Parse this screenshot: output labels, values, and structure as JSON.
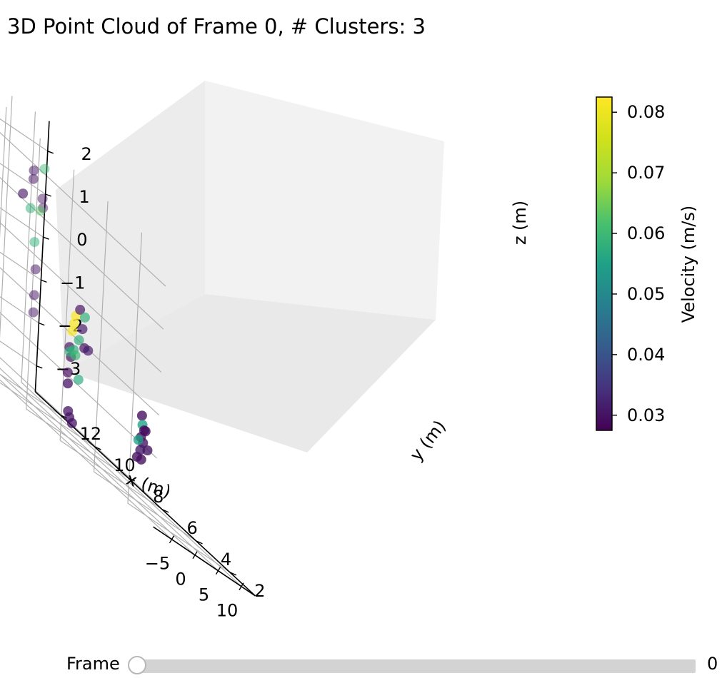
{
  "chart_data": {
    "type": "scatter",
    "projection": "3d",
    "title": "3D Point Cloud of Frame 0, # Clusters: 3",
    "xlabel": "x (m)",
    "ylabel": "y (m)",
    "zlabel": "z (m)",
    "xticks": [
      "−5",
      "0",
      "5",
      "10"
    ],
    "yticks": [
      "2",
      "4",
      "6",
      "8",
      "10",
      "12"
    ],
    "zticks": [
      "2",
      "1",
      "0",
      "−1",
      "−2",
      "−3"
    ],
    "xlim": [
      -9,
      13
    ],
    "ylim": [
      0.5,
      13.5
    ],
    "zlim": [
      -3.6,
      2.7
    ],
    "grid": true,
    "colormap": "viridis",
    "colorbar": {
      "label": "Velocity (m/s)",
      "range": [
        0.0275,
        0.0825
      ],
      "ticks": [
        "0.08",
        "0.07",
        "0.06",
        "0.05",
        "0.04",
        "0.03"
      ]
    },
    "points": [
      {
        "x": -8.3,
        "y": 9.0,
        "z": 1.1,
        "v": 0.03
      },
      {
        "x": -8.0,
        "y": 6.0,
        "z": -2.2,
        "v": 0.03
      },
      {
        "x": -8.4,
        "y": 5.8,
        "z": -2.8,
        "v": 0.03
      },
      {
        "x": -7.8,
        "y": 5.7,
        "z": -3.0,
        "v": 0.03
      },
      {
        "x": -8.8,
        "y": 5.6,
        "z": -2.9,
        "v": 0.03
      },
      {
        "x": -1.5,
        "y": 7.5,
        "z": -0.7,
        "v": 0.083
      },
      {
        "x": -1.8,
        "y": 7.5,
        "z": -0.9,
        "v": 0.083
      },
      {
        "x": -2.1,
        "y": 7.5,
        "z": -1.1,
        "v": 0.082
      },
      {
        "x": -2.5,
        "y": 7.5,
        "z": -1.5,
        "v": 0.03
      },
      {
        "x": -2.1,
        "y": 7.5,
        "z": -1.7,
        "v": 0.029
      },
      {
        "x": -2.6,
        "y": 7.5,
        "z": -2.1,
        "v": 0.029
      },
      {
        "x": -1.6,
        "y": 7.5,
        "z": -1.5,
        "v": 0.058
      },
      {
        "x": -2.4,
        "y": 7.5,
        "z": -1.6,
        "v": 0.058
      },
      {
        "x": -1.2,
        "y": 7.5,
        "z": -1.6,
        "v": 0.06
      },
      {
        "x": -0.6,
        "y": 7.5,
        "z": -1.2,
        "v": 0.058
      },
      {
        "x": -0.7,
        "y": 7.5,
        "z": -0.5,
        "v": 0.03
      },
      {
        "x": 0.4,
        "y": 7.5,
        "z": -0.6,
        "v": 0.058
      },
      {
        "x": -0.3,
        "y": 7.5,
        "z": -2.1,
        "v": 0.057
      },
      {
        "x": 0.0,
        "y": 7.5,
        "z": -0.9,
        "v": 0.031
      },
      {
        "x": 0.6,
        "y": 7.5,
        "z": -1.3,
        "v": 0.03
      },
      {
        "x": 1.4,
        "y": 7.5,
        "z": -1.3,
        "v": 0.031
      },
      {
        "x": 4.8,
        "y": 12.0,
        "z": 1.5,
        "v": 0.03
      },
      {
        "x": 4.8,
        "y": 12.0,
        "z": 1.3,
        "v": 0.029
      },
      {
        "x": 4.5,
        "y": 12.0,
        "z": 0.6,
        "v": 0.058
      },
      {
        "x": 5.7,
        "y": 12.0,
        "z": -0.1,
        "v": 0.058
      },
      {
        "x": 6.2,
        "y": 12.0,
        "z": -0.7,
        "v": 0.03
      },
      {
        "x": 6.2,
        "y": 12.0,
        "z": -1.3,
        "v": 0.03
      },
      {
        "x": 6.2,
        "y": 12.0,
        "z": -1.7,
        "v": 0.03
      },
      {
        "x": 10.7,
        "y": 13.0,
        "z": 1.6,
        "v": 0.06
      },
      {
        "x": 10.6,
        "y": 13.0,
        "z": 0.9,
        "v": 0.029
      },
      {
        "x": 10.8,
        "y": 13.0,
        "z": 0.7,
        "v": 0.03
      },
      {
        "x": 10.3,
        "y": 13.0,
        "z": 0.6,
        "v": 0.063
      },
      {
        "x": 4.1,
        "y": 5.0,
        "z": -1.7,
        "v": 0.029
      },
      {
        "x": 4.3,
        "y": 5.0,
        "z": -1.9,
        "v": 0.055
      },
      {
        "x": 4.7,
        "y": 5.0,
        "z": -2.0,
        "v": 0.029
      },
      {
        "x": 5.0,
        "y": 5.0,
        "z": -2.0,
        "v": 0.029
      },
      {
        "x": 4.1,
        "y": 5.0,
        "z": -2.2,
        "v": 0.029
      },
      {
        "x": 4.6,
        "y": 5.0,
        "z": -2.3,
        "v": 0.03
      },
      {
        "x": 3.6,
        "y": 5.0,
        "z": -2.3,
        "v": 0.055
      },
      {
        "x": 3.5,
        "y": 5.0,
        "z": -2.7,
        "v": 0.029
      },
      {
        "x": 4.1,
        "y": 5.0,
        "z": -2.5,
        "v": 0.031
      },
      {
        "x": 4.4,
        "y": 5.0,
        "z": -2.7,
        "v": 0.029
      },
      {
        "x": 5.6,
        "y": 5.0,
        "z": -2.4,
        "v": 0.03
      }
    ]
  },
  "slider": {
    "label": "Frame",
    "value": "0",
    "fraction": 0
  }
}
